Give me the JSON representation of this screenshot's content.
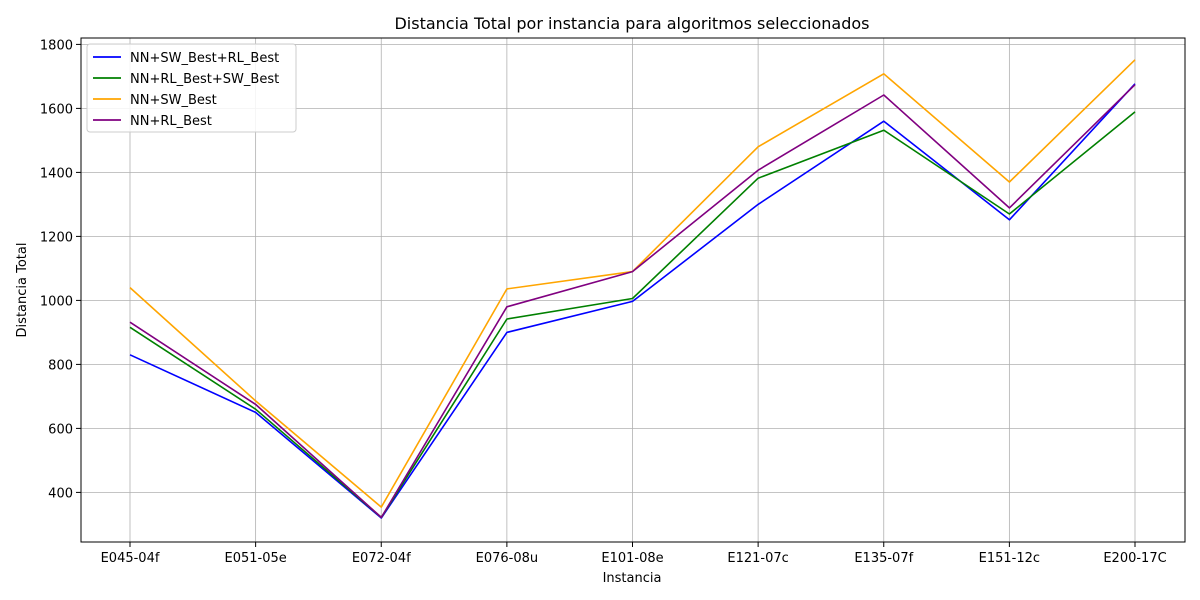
{
  "chart_data": {
    "type": "line",
    "title": "Distancia Total por instancia para algoritmos seleccionados",
    "xlabel": "Instancia",
    "ylabel": "Distancia Total",
    "categories": [
      "E045-04f",
      "E051-05e",
      "E072-04f",
      "E076-08u",
      "E101-08e",
      "E121-07c",
      "E135-07f",
      "E151-12c",
      "E200-17C"
    ],
    "ylim": [
      245,
      1820
    ],
    "yticks": [
      400,
      600,
      800,
      1000,
      1200,
      1400,
      1600,
      1800
    ],
    "grid": true,
    "legend_position": "top-left",
    "series": [
      {
        "name": "NN+SW_Best+RL_Best",
        "color": "#0000ff",
        "values": [
          830,
          650,
          320,
          900,
          997,
          1300,
          1560,
          1252,
          1677
        ]
      },
      {
        "name": "NN+RL_Best+SW_Best",
        "color": "#008000",
        "values": [
          916,
          660,
          322,
          942,
          1006,
          1382,
          1532,
          1270,
          1589
        ]
      },
      {
        "name": "NN+SW_Best",
        "color": "#ffa500",
        "values": [
          1040,
          686,
          354,
          1036,
          1090,
          1480,
          1708,
          1370,
          1752
        ]
      },
      {
        "name": "NN+RL_Best",
        "color": "#800080",
        "values": [
          932,
          675,
          322,
          980,
          1090,
          1407,
          1642,
          1289,
          1674
        ]
      }
    ]
  }
}
